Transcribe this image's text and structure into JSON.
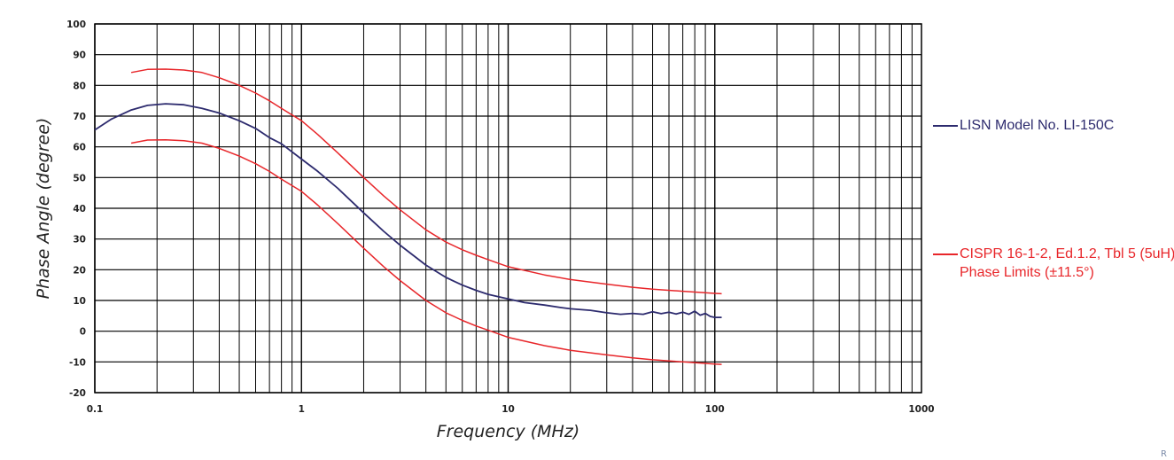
{
  "chart_data": {
    "type": "line",
    "xlabel": "Frequency (MHz)",
    "ylabel": "Phase Angle (degree)",
    "xscale": "log",
    "xlim": [
      0.1,
      1000
    ],
    "ylim": [
      -20,
      100
    ],
    "xticks": [
      0.1,
      1,
      10,
      100,
      1000
    ],
    "xtick_labels": [
      "0.1",
      "1",
      "10",
      "100",
      "1000"
    ],
    "yticks": [
      -20,
      -10,
      0,
      10,
      20,
      30,
      40,
      50,
      60,
      70,
      80,
      90,
      100
    ],
    "ytick_labels": [
      "-20",
      "-10",
      "0",
      "10",
      "20",
      "30",
      "40",
      "50",
      "60",
      "70",
      "80",
      "90",
      "100"
    ],
    "grid": true,
    "legend_position": "right",
    "series": [
      {
        "name": "LISN Model No. LI-150C",
        "color": "#2d2b6e",
        "x": [
          0.1,
          0.12,
          0.15,
          0.18,
          0.22,
          0.27,
          0.33,
          0.4,
          0.5,
          0.6,
          0.7,
          0.8,
          1.0,
          1.2,
          1.5,
          2.0,
          2.5,
          3.0,
          4.0,
          5.0,
          6.0,
          7.0,
          8.0,
          10,
          12,
          15,
          18,
          20,
          25,
          30,
          35,
          40,
          45,
          50,
          55,
          60,
          65,
          70,
          75,
          80,
          85,
          90,
          95,
          100,
          108
        ],
        "y": [
          65.5,
          69,
          72,
          73.5,
          74,
          73.7,
          72.5,
          71,
          68.5,
          66,
          63,
          61,
          56,
          52,
          46.5,
          38.5,
          32.5,
          28,
          21.5,
          17.5,
          15,
          13.3,
          12,
          10.5,
          9.3,
          8.5,
          7.7,
          7.3,
          6.8,
          6,
          5.5,
          5.8,
          5.5,
          6.3,
          5.7,
          6.2,
          5.6,
          6.2,
          5.5,
          6.5,
          5.2,
          5.8,
          4.8,
          4.5,
          4.5
        ]
      },
      {
        "name": "CISPR 16-1-2, Ed.1.2, Tbl 5 (5uH) Phase Limits (±11.5°)",
        "color": "#e8262a",
        "x": [
          0.15,
          0.18,
          0.22,
          0.27,
          0.33,
          0.4,
          0.5,
          0.6,
          0.7,
          0.8,
          1.0,
          1.2,
          1.5,
          2.0,
          2.5,
          3.0,
          4.0,
          5.0,
          6.0,
          7.0,
          8.0,
          10,
          15,
          20,
          30,
          40,
          50,
          70,
          100,
          108
        ],
        "y": [
          84.2,
          85.2,
          85.3,
          85,
          84.2,
          82.5,
          80,
          77.5,
          75,
          72.5,
          68.5,
          64,
          58,
          50,
          44,
          39.5,
          33,
          29,
          26.5,
          24.7,
          23.3,
          21,
          18.3,
          16.8,
          15.3,
          14.3,
          13.7,
          13,
          12.3,
          12.2
        ]
      },
      {
        "name": "",
        "color": "#e8262a",
        "x": [
          0.15,
          0.18,
          0.22,
          0.27,
          0.33,
          0.4,
          0.5,
          0.6,
          0.7,
          0.8,
          1.0,
          1.2,
          1.5,
          2.0,
          2.5,
          3.0,
          4.0,
          5.0,
          6.0,
          7.0,
          8.0,
          10,
          15,
          20,
          30,
          40,
          50,
          70,
          100,
          108
        ],
        "y": [
          61.2,
          62.2,
          62.3,
          62,
          61.2,
          59.5,
          57,
          54.5,
          52,
          49.5,
          45.5,
          41,
          35,
          27,
          21,
          16.5,
          10,
          6,
          3.5,
          1.7,
          0.3,
          -2,
          -4.7,
          -6.2,
          -7.7,
          -8.7,
          -9.3,
          -10,
          -10.7,
          -10.8
        ]
      }
    ]
  },
  "legend": [
    {
      "label": "LISN Model No. LI-150C",
      "color": "#2d2b6e"
    },
    {
      "label": "CISPR 16-1-2, Ed.1.2, Tbl 5 (5uH) Phase Limits (±11.5°)",
      "color": "#e8262a"
    }
  ],
  "corner_text": "R"
}
